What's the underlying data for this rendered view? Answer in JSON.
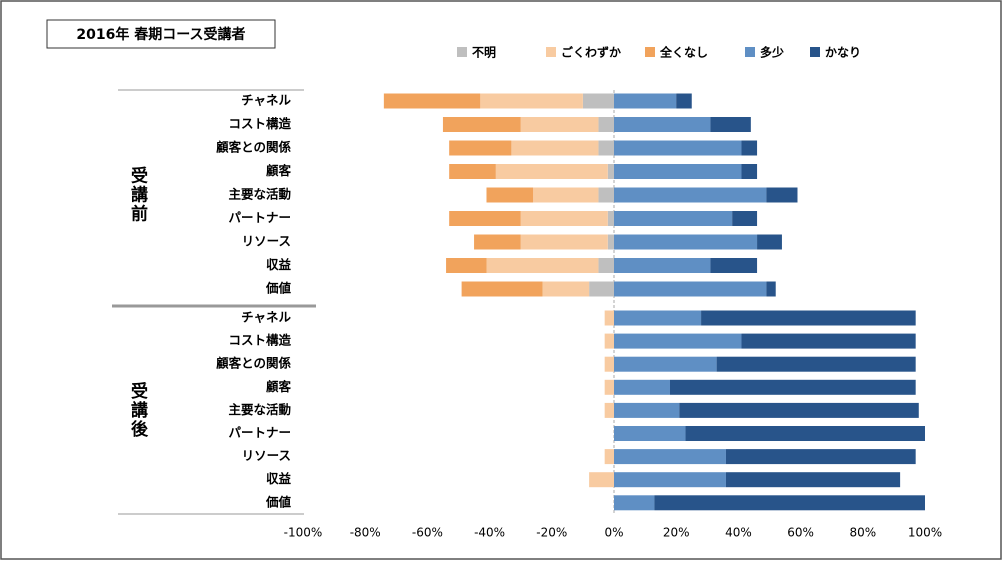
{
  "chart_data": {
    "type": "diverging-bar",
    "title": "2016年 春期コース受講者",
    "groups": [
      {
        "name": "受講前",
        "categories": [
          "チャネル",
          "コスト構造",
          "顧客との関係",
          "顧客",
          "主要な活動",
          "パートナー",
          "リソース",
          "収益",
          "価値"
        ]
      },
      {
        "name": "受講後",
        "categories": [
          "チャネル",
          "コスト構造",
          "顧客との関係",
          "顧客",
          "主要な活動",
          "パートナー",
          "リソース",
          "収益",
          "価値"
        ]
      }
    ],
    "series": [
      {
        "name": "不明",
        "color": "#bfbfbf",
        "values": [
          -10,
          -5,
          -5,
          -2,
          -5,
          -2,
          -2,
          -5,
          -8,
          0,
          0,
          0,
          0,
          0,
          0,
          0,
          0,
          0
        ]
      },
      {
        "name": "ごくわずか",
        "color": "#f8cba1",
        "values": [
          -33,
          -25,
          -28,
          -36,
          -21,
          -28,
          -28,
          -36,
          -15,
          -3,
          -3,
          -3,
          -3,
          -3,
          0,
          -3,
          -8,
          0
        ]
      },
      {
        "name": "全くなし",
        "color": "#f1a35c",
        "values": [
          -31,
          -25,
          -20,
          -15,
          -15,
          -23,
          -15,
          -13,
          -26,
          0,
          0,
          0,
          0,
          0,
          0,
          0,
          0,
          0
        ]
      },
      {
        "name": "多少",
        "color": "#5f8fc4",
        "values": [
          20,
          31,
          41,
          41,
          49,
          38,
          46,
          31,
          49,
          28,
          41,
          33,
          18,
          21,
          23,
          36,
          36,
          13
        ]
      },
      {
        "name": "かなり",
        "color": "#28548a",
        "values": [
          5,
          13,
          5,
          5,
          10,
          8,
          8,
          15,
          3,
          69,
          56,
          64,
          79,
          77,
          77,
          61,
          56,
          87
        ]
      }
    ],
    "xlim": [
      -100,
      100
    ],
    "xticks": [
      {
        "value": -100,
        "label": "-100%"
      },
      {
        "value": -80,
        "label": "-80%"
      },
      {
        "value": -60,
        "label": "-60%"
      },
      {
        "value": -40,
        "label": "-40%"
      },
      {
        "value": -20,
        "label": "-20%"
      },
      {
        "value": 0,
        "label": "0%"
      },
      {
        "value": 20,
        "label": "20%"
      },
      {
        "value": 40,
        "label": "40%"
      },
      {
        "value": 60,
        "label": "60%"
      },
      {
        "value": 80,
        "label": "80%"
      },
      {
        "value": 100,
        "label": "100%"
      }
    ]
  }
}
